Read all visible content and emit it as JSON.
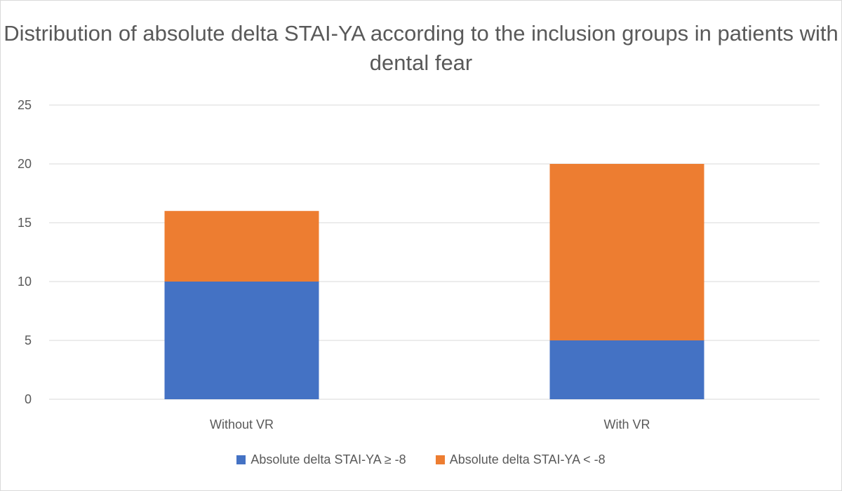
{
  "chart_data": {
    "type": "bar",
    "stacked": true,
    "title": "Distribution of absolute delta STAI-YA according to the inclusion groups in patients with dental fear",
    "categories": [
      "Without VR",
      "With VR"
    ],
    "series": [
      {
        "name": "Absolute delta STAI-YA ≥ -8",
        "values": [
          10,
          5
        ],
        "color": "#4472c4"
      },
      {
        "name": "Absolute delta STAI-YA < -8",
        "values": [
          6,
          15
        ],
        "color": "#ed7d31"
      }
    ],
    "xlabel": "",
    "ylabel": "",
    "ylim": [
      0,
      25
    ],
    "yticks": [
      "0",
      "5",
      "10",
      "15",
      "20",
      "25"
    ],
    "grid": true,
    "legend_position": "bottom",
    "gridline_color": "#d9d9d9",
    "text_color": "#595959"
  }
}
